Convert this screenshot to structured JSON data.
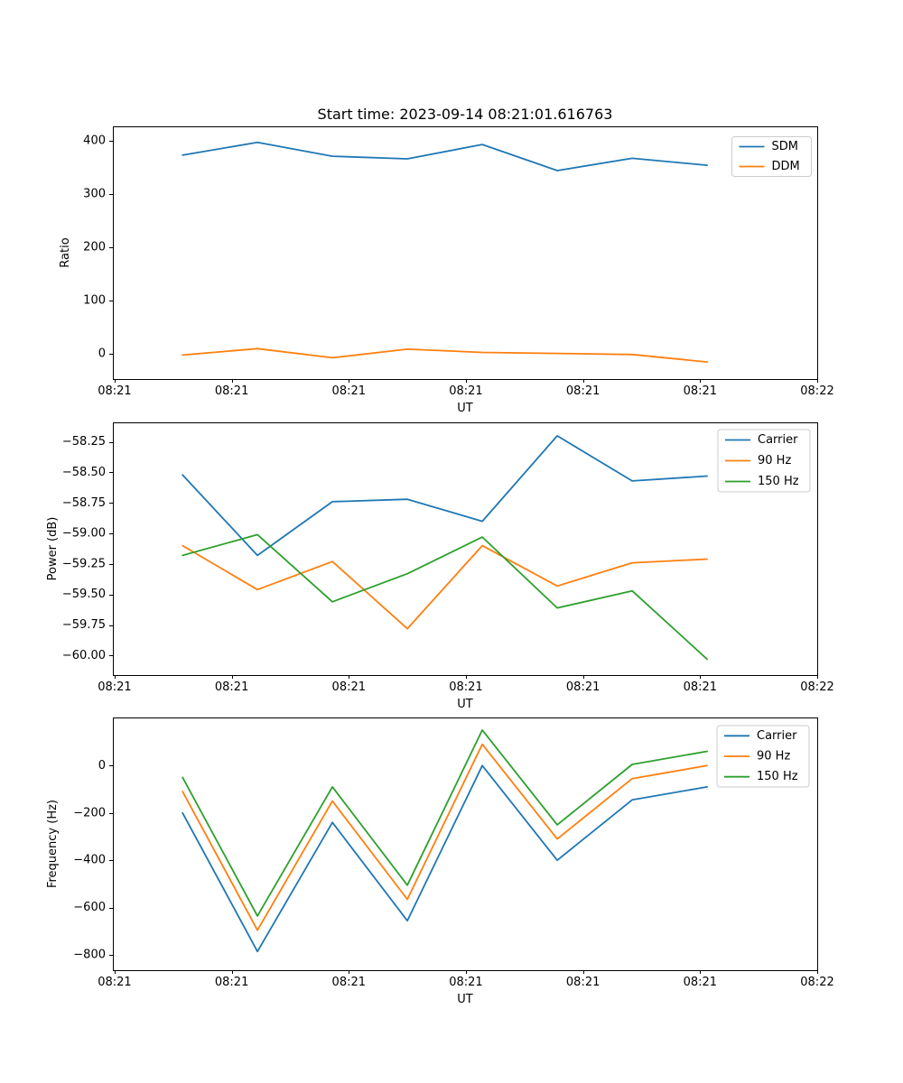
{
  "figure": {
    "title": "Start time: 2023-09-14 08:21:01.616763",
    "background": "#ffffff"
  },
  "colors": {
    "blue": "#1f77b4",
    "orange": "#ff7f0e",
    "green": "#2ca02c",
    "axis": "#000000",
    "legend_border": "#cccccc"
  },
  "chart_data": [
    {
      "type": "line",
      "name": "ratio",
      "title": "Start time: 2023-09-14 08:21:01.616763",
      "ylabel": "Ratio",
      "xlabel": "UT",
      "ylim": [
        -47,
        427
      ],
      "yticks": [
        0,
        100,
        200,
        300,
        400
      ],
      "ytick_labels": [
        "0",
        "100",
        "200",
        "300",
        "400"
      ],
      "xlim": [
        -0.15,
        60
      ],
      "x_ticks": [
        0,
        10,
        20,
        30,
        40,
        50,
        60
      ],
      "x_tick_labels": [
        "08:21",
        "08:21",
        "08:21",
        "08:21",
        "08:21",
        "08:21",
        "08:22"
      ],
      "x": [
        5.8,
        12.2,
        18.6,
        25.0,
        31.4,
        37.8,
        44.2,
        50.6
      ],
      "legend_position": "upper right",
      "grid": false,
      "series": [
        {
          "name": "SDM",
          "color": "#1f77b4",
          "values": [
            373,
            397,
            371,
            366,
            393,
            344,
            367,
            354
          ]
        },
        {
          "name": "DDM",
          "color": "#ff7f0e",
          "values": [
            -2,
            10,
            -7,
            9,
            3,
            1,
            -1,
            -15
          ]
        }
      ]
    },
    {
      "type": "line",
      "name": "power",
      "ylabel": "Power (dB)",
      "xlabel": "UT",
      "ylim": [
        -60.16,
        -58.09
      ],
      "yticks": [
        -58.25,
        -58.5,
        -58.75,
        -59.0,
        -59.25,
        -59.5,
        -59.75,
        -60.0
      ],
      "ytick_labels": [
        "−58.25",
        "−58.50",
        "−58.75",
        "−59.00",
        "−59.25",
        "−59.50",
        "−59.75",
        "−60.00"
      ],
      "xlim": [
        -0.15,
        60
      ],
      "x_ticks": [
        0,
        10,
        20,
        30,
        40,
        50,
        60
      ],
      "x_tick_labels": [
        "08:21",
        "08:21",
        "08:21",
        "08:21",
        "08:21",
        "08:21",
        "08:22"
      ],
      "x": [
        5.8,
        12.2,
        18.6,
        25.0,
        31.4,
        37.8,
        44.2,
        50.6
      ],
      "legend_position": "upper right",
      "grid": false,
      "series": [
        {
          "name": "Carrier",
          "color": "#1f77b4",
          "values": [
            -58.52,
            -59.18,
            -58.74,
            -58.72,
            -58.9,
            -58.2,
            -58.57,
            -58.53
          ]
        },
        {
          "name": "90 Hz",
          "color": "#ff7f0e",
          "values": [
            -59.1,
            -59.46,
            -59.23,
            -59.78,
            -59.1,
            -59.43,
            -59.24,
            -59.21
          ]
        },
        {
          "name": "150 Hz",
          "color": "#2ca02c",
          "values": [
            -59.18,
            -59.01,
            -59.56,
            -59.33,
            -59.03,
            -59.61,
            -59.47,
            -60.03
          ]
        }
      ]
    },
    {
      "type": "line",
      "name": "frequency",
      "ylabel": "Frequency (Hz)",
      "xlabel": "UT",
      "ylim": [
        -864,
        203
      ],
      "yticks": [
        0,
        -200,
        -400,
        -600,
        -800
      ],
      "ytick_labels": [
        "0",
        "−200",
        "−400",
        "−600",
        "−800"
      ],
      "xlim": [
        -0.15,
        60
      ],
      "x_ticks": [
        0,
        10,
        20,
        30,
        40,
        50,
        60
      ],
      "x_tick_labels": [
        "08:21",
        "08:21",
        "08:21",
        "08:21",
        "08:21",
        "08:21",
        "08:22"
      ],
      "x": [
        5.8,
        12.2,
        18.6,
        25.0,
        31.4,
        37.8,
        44.2,
        50.6
      ],
      "legend_position": "upper right",
      "grid": false,
      "series": [
        {
          "name": "Carrier",
          "color": "#1f77b4",
          "values": [
            -200,
            -785,
            -240,
            -655,
            0,
            -400,
            -145,
            -90
          ]
        },
        {
          "name": "90 Hz",
          "color": "#ff7f0e",
          "values": [
            -110,
            -695,
            -150,
            -565,
            90,
            -310,
            -55,
            0
          ]
        },
        {
          "name": "150 Hz",
          "color": "#2ca02c",
          "values": [
            -50,
            -635,
            -90,
            -505,
            150,
            -250,
            5,
            60
          ]
        }
      ]
    }
  ]
}
